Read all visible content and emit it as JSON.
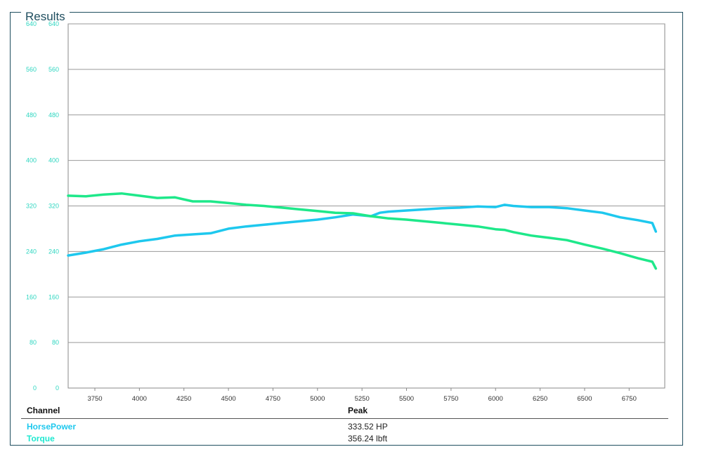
{
  "title": "Results",
  "chart_data": {
    "type": "line",
    "xlabel": "",
    "ylabel": "",
    "xlim": [
      3600,
      6950
    ],
    "ylim": [
      0,
      640
    ],
    "x_ticks": [
      3750,
      4000,
      4250,
      4500,
      4750,
      5000,
      5250,
      5500,
      5750,
      6000,
      6250,
      6500,
      6750
    ],
    "y_ticks": [
      0,
      80,
      160,
      240,
      320,
      400,
      480,
      560,
      640
    ],
    "grid": true,
    "legend": "none",
    "series": [
      {
        "name": "HorsePower",
        "color": "#1ec8ee",
        "x": [
          3600,
          3700,
          3800,
          3900,
          4000,
          4100,
          4200,
          4300,
          4400,
          4500,
          4600,
          4700,
          4800,
          4900,
          5000,
          5100,
          5200,
          5300,
          5350,
          5400,
          5500,
          5600,
          5700,
          5800,
          5900,
          6000,
          6050,
          6100,
          6200,
          6300,
          6400,
          6500,
          6600,
          6700,
          6800,
          6880,
          6900
        ],
        "y": [
          233,
          238,
          244,
          252,
          258,
          262,
          268,
          270,
          272,
          280,
          284,
          287,
          290,
          293,
          296,
          300,
          305,
          302,
          308,
          310,
          312,
          314,
          316,
          317,
          319,
          318,
          322,
          320,
          318,
          318,
          316,
          312,
          308,
          300,
          295,
          290,
          275
        ]
      },
      {
        "name": "Torque",
        "color": "#1ee88a",
        "x": [
          3600,
          3700,
          3800,
          3900,
          4000,
          4100,
          4200,
          4300,
          4400,
          4500,
          4600,
          4700,
          4800,
          4900,
          5000,
          5100,
          5200,
          5300,
          5400,
          5500,
          5600,
          5700,
          5800,
          5900,
          6000,
          6050,
          6100,
          6200,
          6300,
          6400,
          6500,
          6600,
          6700,
          6800,
          6880,
          6900
        ],
        "y": [
          338,
          337,
          340,
          342,
          338,
          334,
          335,
          328,
          328,
          325,
          322,
          320,
          317,
          314,
          311,
          308,
          307,
          302,
          298,
          296,
          293,
          290,
          287,
          284,
          279,
          278,
          274,
          268,
          264,
          260,
          252,
          245,
          237,
          228,
          222,
          210
        ]
      }
    ]
  },
  "table": {
    "headers": {
      "channel": "Channel",
      "peak": "Peak"
    },
    "rows": [
      {
        "channel": "HorsePower",
        "peak": "333.52 HP",
        "color": "#1ec8ee"
      },
      {
        "channel": "Torque",
        "peak": "356.24 lbft",
        "color": "#1ee8d0"
      }
    ]
  }
}
